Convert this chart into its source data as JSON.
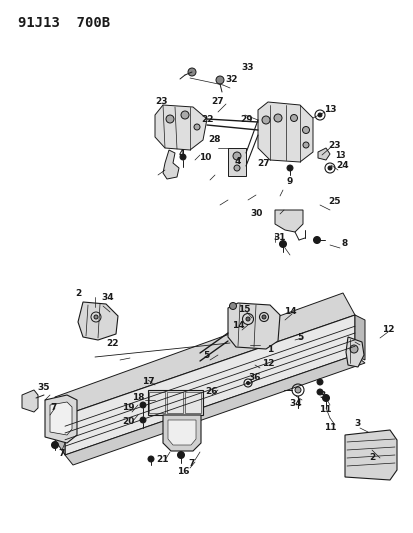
{
  "title": "91J13  700B",
  "bg_color": "#ffffff",
  "line_color": "#1a1a1a",
  "title_fontsize": 10,
  "label_fontsize": 6.5,
  "fig_width": 4.14,
  "fig_height": 5.33,
  "dpi": 100
}
